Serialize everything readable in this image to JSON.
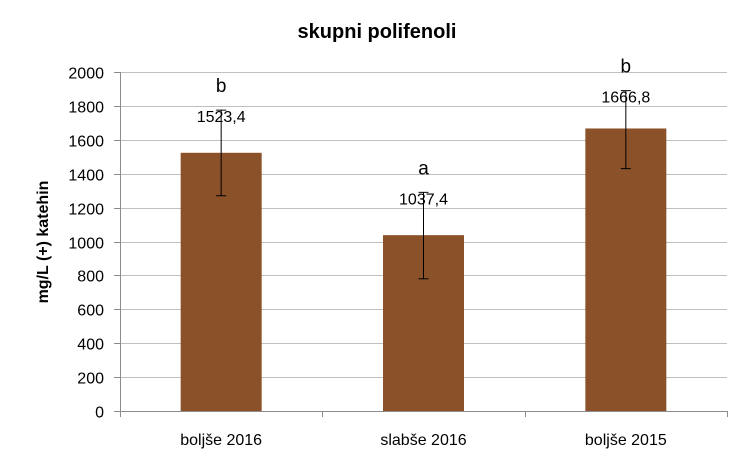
{
  "chart_data": {
    "type": "bar",
    "title": "skupni polifenoli",
    "ylabel": "mg/L (+) katehin",
    "xlabel": "",
    "categories": [
      "boljše 2016",
      "slabše 2016",
      "boljše 2015"
    ],
    "values": [
      1523.4,
      1037.4,
      1666.8
    ],
    "value_labels": [
      "1523,4",
      "1037,4",
      "1666,8"
    ],
    "error_low": [
      1270,
      780,
      1430
    ],
    "error_high": [
      1775,
      1290,
      1890
    ],
    "significance_letters": [
      "b",
      "a",
      "b"
    ],
    "ylim": [
      0,
      2000
    ],
    "yticks": [
      0,
      200,
      400,
      600,
      800,
      1000,
      1200,
      1400,
      1600,
      1800,
      2000
    ],
    "grid": true,
    "legend": "none",
    "bar_color": "#8B5229",
    "grid_color": "#bfbfbf"
  }
}
